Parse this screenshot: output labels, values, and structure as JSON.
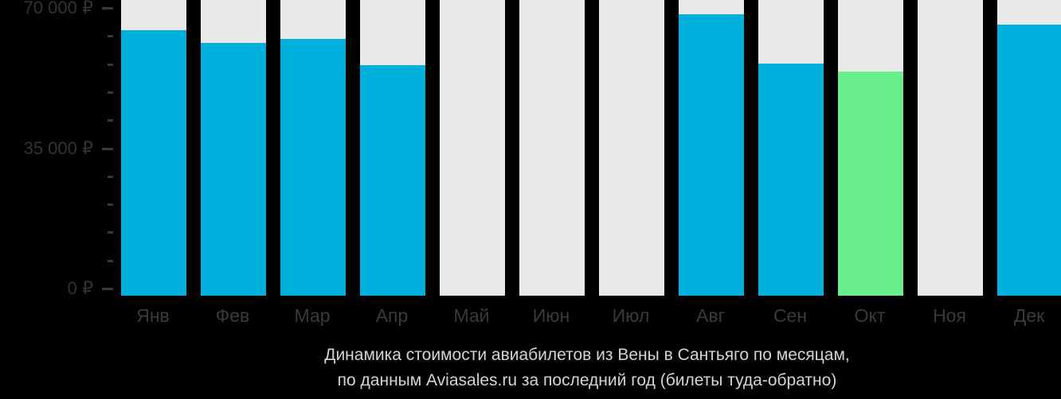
{
  "chart_data": {
    "type": "bar",
    "title": "Динамика стоимости авиабилетов из Вены в Сантьяго по месяцам, по данным Aviasales.ru за последний год (билеты туда-обратно)",
    "categories": [
      "Янв",
      "Фев",
      "Мар",
      "Апр",
      "Май",
      "Июн",
      "Июл",
      "Авг",
      "Сен",
      "Окт",
      "Ноя",
      "Дек"
    ],
    "values": [
      65000,
      62000,
      63000,
      56500,
      null,
      null,
      null,
      69000,
      57000,
      55000,
      null,
      66500
    ],
    "currency": "₽",
    "highlight_index": 9,
    "legend": "none",
    "grid": false,
    "y_axis": {
      "ylim": [
        0,
        70000
      ],
      "minor_step": 7000,
      "major_ticks": [
        {
          "value": 0,
          "label": "0 ₽"
        },
        {
          "value": 35000,
          "label": "35 000 ₽"
        },
        {
          "value": 70000,
          "label": "70 000 ₽"
        }
      ]
    },
    "colors": {
      "bar": "#00B0DC",
      "highlight": "#68EE8B",
      "column_bg": "#E9E9E9",
      "background": "#000000",
      "axis_text": "#333333",
      "month_text": "#3A3A3A",
      "tick": "#3A3A3A",
      "caption_text": "#D4D4D4"
    }
  },
  "caption": {
    "line1": "Динамика стоимости авиабилетов из Вены в Сантьяго по месяцам,",
    "line2": "по данным Aviasales.ru за последний год (билеты туда-обратно)"
  }
}
